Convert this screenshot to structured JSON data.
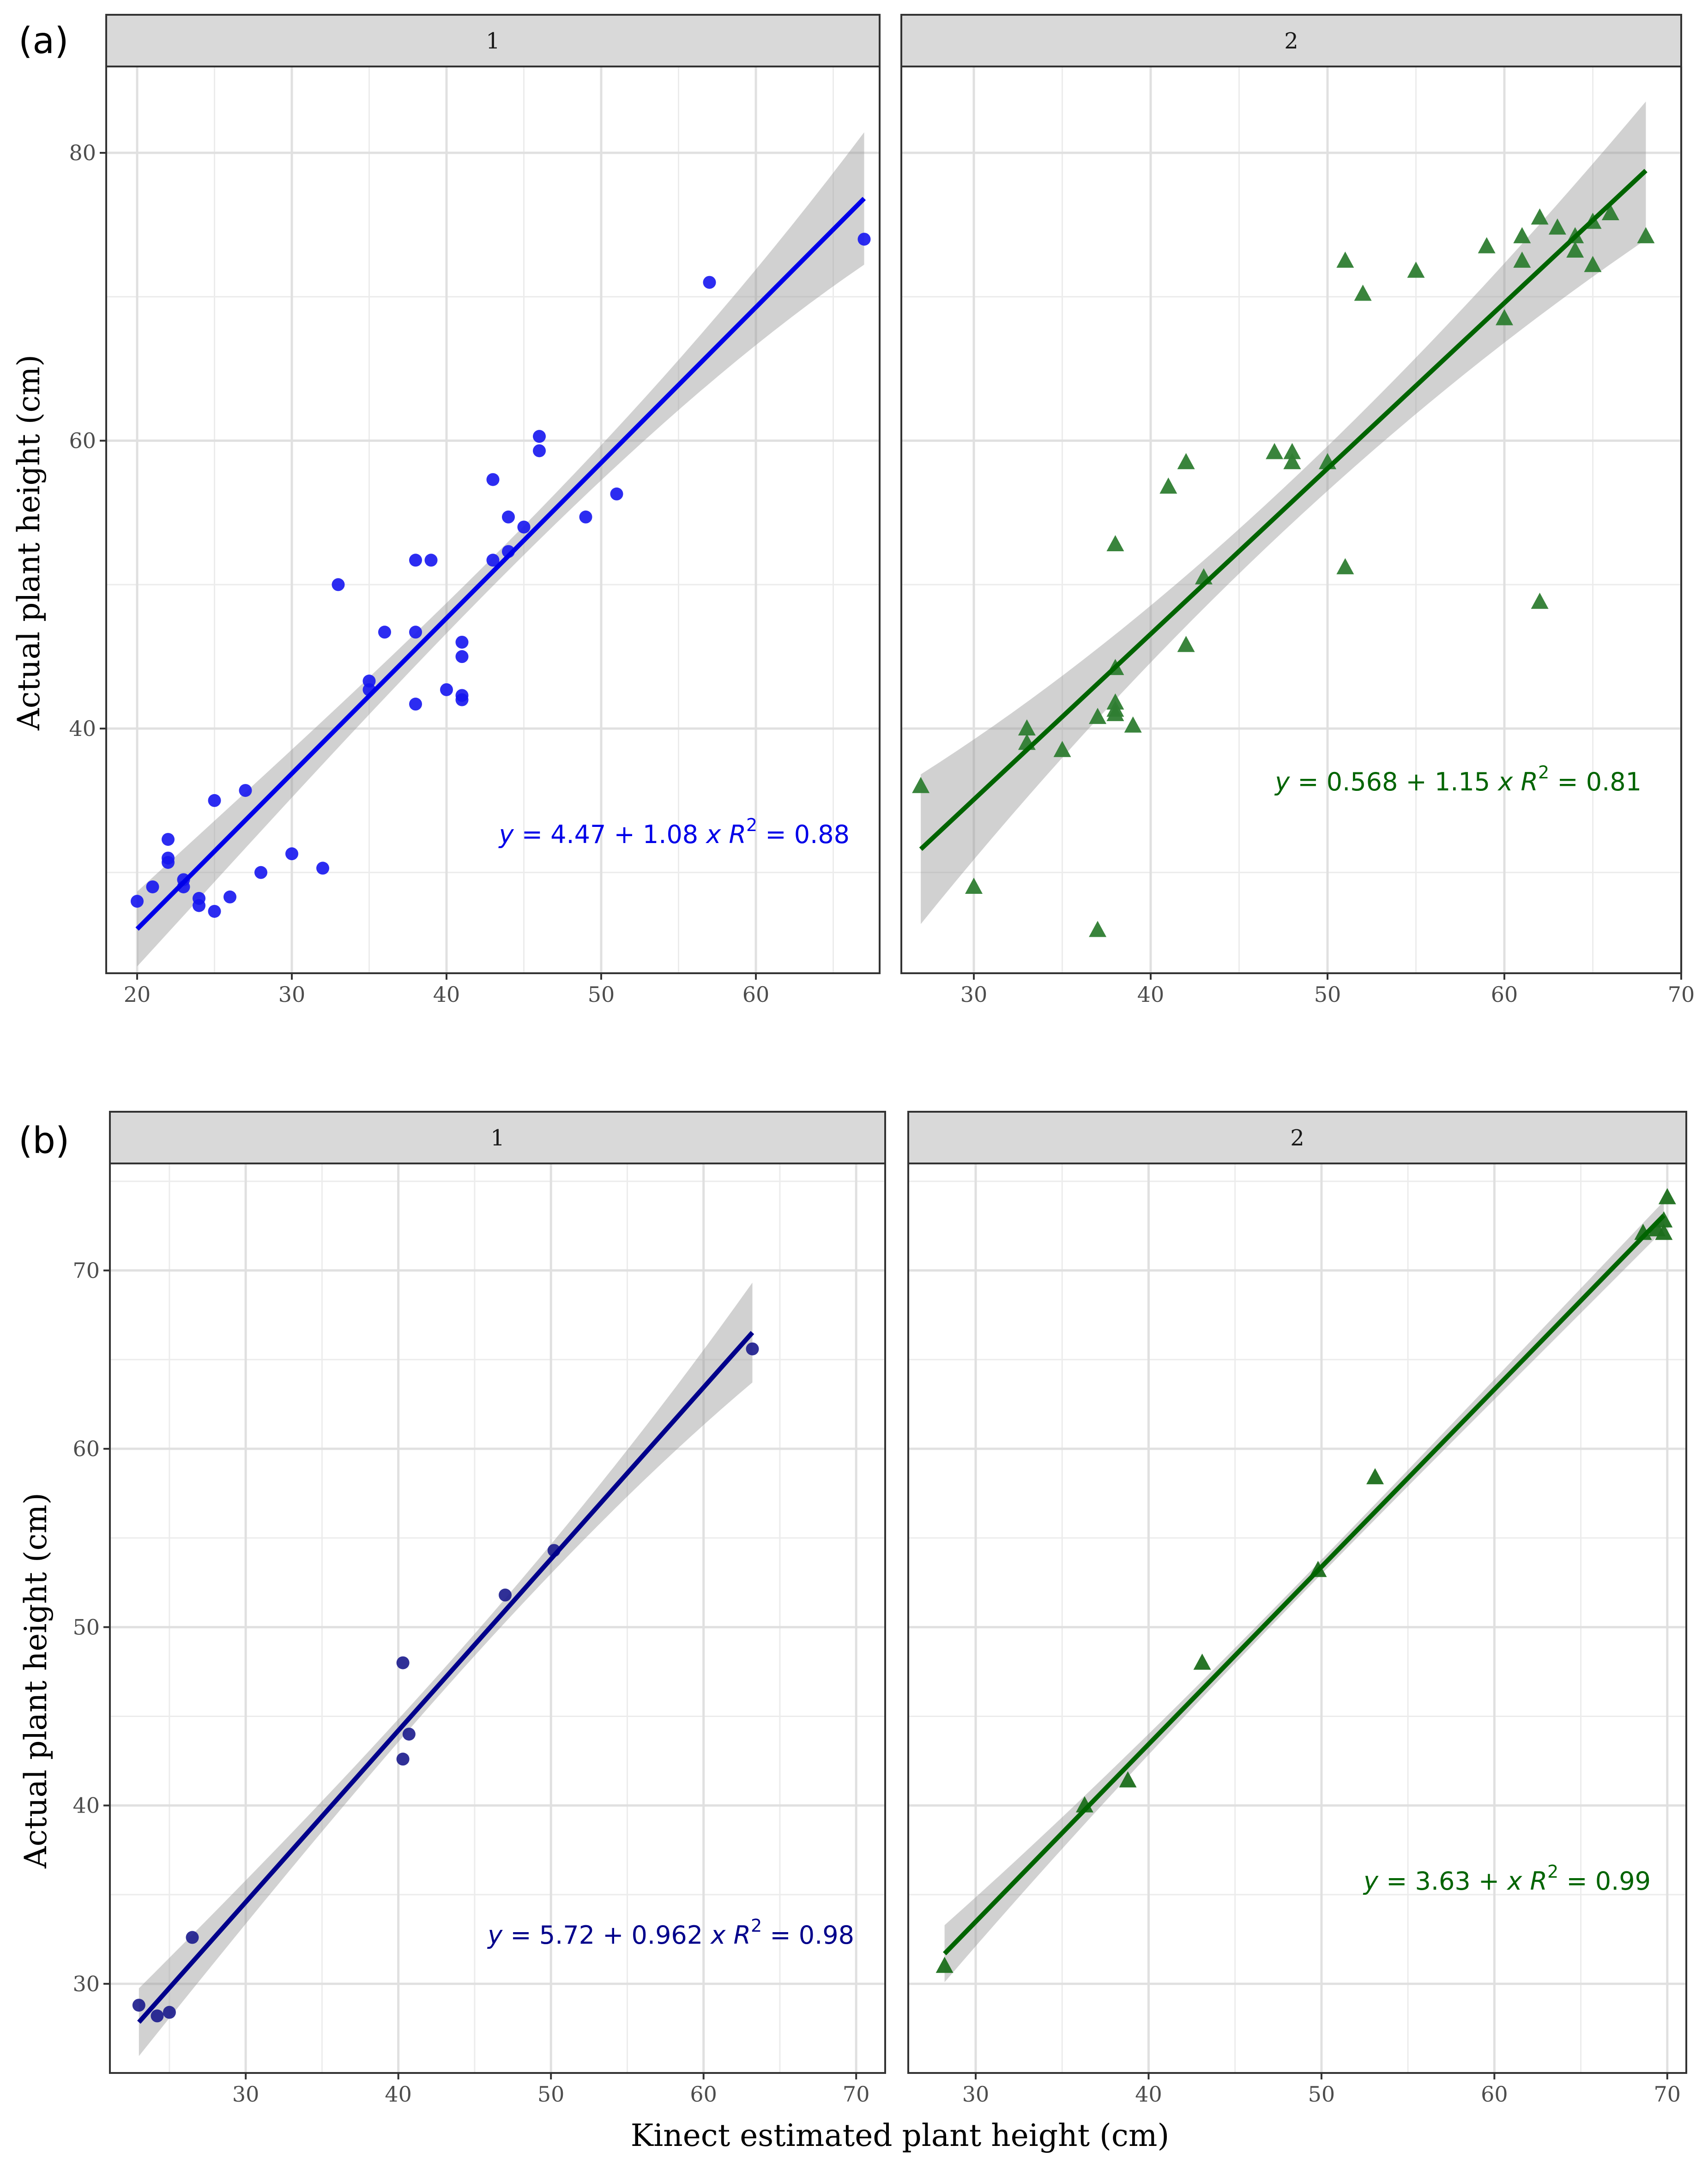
{
  "figure": {
    "xlabel": "Kinect estimated plant height (cm)",
    "ylabel": "Actual plant height (cm)"
  },
  "chart_data": [
    {
      "type": "scatter",
      "panel_label": "(a)",
      "facet": "1",
      "point_shape": "circle",
      "point_color": "#1515f0",
      "line_color": "#0000e8",
      "xlim": [
        18,
        68
      ],
      "ylim": [
        23,
        86
      ],
      "xticks": [
        20,
        30,
        40,
        50,
        60
      ],
      "yticks": [
        40,
        60,
        80
      ],
      "annotation": {
        "y": "y",
        "eq": " = 4.47 + 1.08 ",
        "x": "x",
        "r": "R",
        "sup": "2",
        "val": " = 0.88"
      },
      "fit": {
        "intercept": 4.47,
        "slope": 1.08,
        "x_range": [
          20,
          67
        ],
        "band_half_width": [
          2.6,
          1.0,
          4.6
        ]
      },
      "points": [
        [
          20,
          28
        ],
        [
          21,
          29
        ],
        [
          22,
          32.3
        ],
        [
          22,
          31
        ],
        [
          22,
          30.7
        ],
        [
          23,
          29.5
        ],
        [
          23,
          29
        ],
        [
          24,
          28.2
        ],
        [
          24,
          27.7
        ],
        [
          25,
          27.3
        ],
        [
          25,
          35
        ],
        [
          26,
          28.3
        ],
        [
          27,
          35.7
        ],
        [
          28,
          30
        ],
        [
          30,
          31.3
        ],
        [
          32,
          30.3
        ],
        [
          33,
          50
        ],
        [
          35,
          43.3
        ],
        [
          35,
          42.7
        ],
        [
          36,
          46.7
        ],
        [
          38,
          51.7
        ],
        [
          38,
          46.7
        ],
        [
          38,
          41.7
        ],
        [
          39,
          51.7
        ],
        [
          40,
          42.7
        ],
        [
          41,
          46
        ],
        [
          41,
          45
        ],
        [
          41,
          42.3
        ],
        [
          41,
          42
        ],
        [
          43,
          57.3
        ],
        [
          43,
          51.7
        ],
        [
          44,
          54.7
        ],
        [
          44,
          52.3
        ],
        [
          45,
          54
        ],
        [
          46,
          60.3
        ],
        [
          46,
          59.3
        ],
        [
          49,
          54.7
        ],
        [
          51,
          56.3
        ],
        [
          57,
          71
        ],
        [
          67,
          74
        ]
      ]
    },
    {
      "type": "scatter",
      "panel_label": "",
      "facet": "2",
      "point_shape": "triangle",
      "point_color": "#2e7d32",
      "line_color": "#006400",
      "xlim": [
        25.9,
        70
      ],
      "ylim": [
        23,
        86
      ],
      "xticks": [
        30,
        40,
        50,
        60,
        70
      ],
      "yticks": [
        40,
        60,
        80
      ],
      "annotation": {
        "y": "y",
        "eq": " = 0.568 + 1.15 ",
        "x": "x",
        "r": "R",
        "sup": "2",
        "val": " = 0.81"
      },
      "fit": {
        "intercept": 0.568,
        "slope": 1.15,
        "x_range": [
          27,
          68
        ],
        "band_half_width": [
          5.2,
          1.5,
          4.8
        ]
      },
      "points": [
        [
          27,
          36
        ],
        [
          30,
          29
        ],
        [
          33,
          40
        ],
        [
          33,
          39
        ],
        [
          35,
          38.5
        ],
        [
          37,
          26
        ],
        [
          37,
          40.8
        ],
        [
          38,
          52.8
        ],
        [
          38,
          44.2
        ],
        [
          38,
          41.8
        ],
        [
          38,
          41.3
        ],
        [
          38,
          41
        ],
        [
          39,
          40.2
        ],
        [
          41,
          56.8
        ],
        [
          42,
          58.5
        ],
        [
          42,
          45.8
        ],
        [
          43,
          50.5
        ],
        [
          47,
          59.2
        ],
        [
          48,
          59.2
        ],
        [
          48,
          58.5
        ],
        [
          50,
          58.5
        ],
        [
          51,
          72.5
        ],
        [
          51,
          51.2
        ],
        [
          52,
          70.2
        ],
        [
          55,
          71.8
        ],
        [
          59,
          73.5
        ],
        [
          60,
          68.5
        ],
        [
          61,
          74.2
        ],
        [
          61,
          72.5
        ],
        [
          62,
          75.5
        ],
        [
          62,
          48.8
        ],
        [
          63,
          74.8
        ],
        [
          64,
          74.2
        ],
        [
          64,
          73.2
        ],
        [
          65,
          75.2
        ],
        [
          65,
          72.2
        ],
        [
          66,
          75.8
        ],
        [
          68,
          74.2
        ]
      ]
    },
    {
      "type": "scatter",
      "panel_label": "(b)",
      "facet": "1",
      "point_shape": "circle",
      "point_color": "#1a1a8c",
      "line_color": "#00008b",
      "xlim": [
        21.1,
        71.9
      ],
      "ylim": [
        25,
        76
      ],
      "xticks": [
        30,
        40,
        50,
        60,
        70
      ],
      "yticks": [
        30,
        40,
        50,
        60,
        70
      ],
      "annotation": {
        "y": "y",
        "eq": " = 5.72 + 0.962 ",
        "x": "x",
        "r": "R",
        "sup": "2",
        "val": " = 0.98"
      },
      "fit": {
        "intercept": 5.72,
        "slope": 0.962,
        "x_range": [
          23,
          63.2
        ],
        "band_half_width": [
          1.9,
          0.6,
          2.8
        ]
      },
      "points": [
        [
          23,
          28.8
        ],
        [
          24.2,
          28.2
        ],
        [
          25,
          28.4
        ],
        [
          26.5,
          32.6
        ],
        [
          40.3,
          48
        ],
        [
          40.3,
          42.6
        ],
        [
          40.7,
          44
        ],
        [
          47,
          51.8
        ],
        [
          50.2,
          54.3
        ],
        [
          63.2,
          65.6
        ]
      ]
    },
    {
      "type": "scatter",
      "panel_label": "",
      "facet": "2",
      "point_shape": "triangle",
      "point_color": "#1b6e1b",
      "line_color": "#006400",
      "xlim": [
        26.1,
        71.1
      ],
      "ylim": [
        25,
        76
      ],
      "xticks": [
        30,
        40,
        50,
        60,
        70
      ],
      "yticks": [
        30,
        40,
        50,
        60,
        70
      ],
      "annotation": {
        "y": "y",
        "eq": " = 3.63 + ",
        "x": "x",
        "r": "R",
        "sup": "2",
        "val": " = 0.99"
      },
      "fit": {
        "intercept": 3.63,
        "slope": 0.995,
        "x_range": [
          28.2,
          69.8
        ],
        "band_half_width": [
          1.6,
          0.4,
          0.8
        ]
      },
      "points": [
        [
          28.2,
          31
        ],
        [
          36.3,
          40
        ],
        [
          38.8,
          41.4
        ],
        [
          43.1,
          48
        ],
        [
          49.8,
          53.2
        ],
        [
          53.1,
          58.4
        ],
        [
          68.6,
          72.1
        ],
        [
          69.4,
          72.3
        ],
        [
          69.8,
          72.8
        ],
        [
          69.8,
          72.1
        ],
        [
          70,
          74.1
        ]
      ]
    }
  ]
}
